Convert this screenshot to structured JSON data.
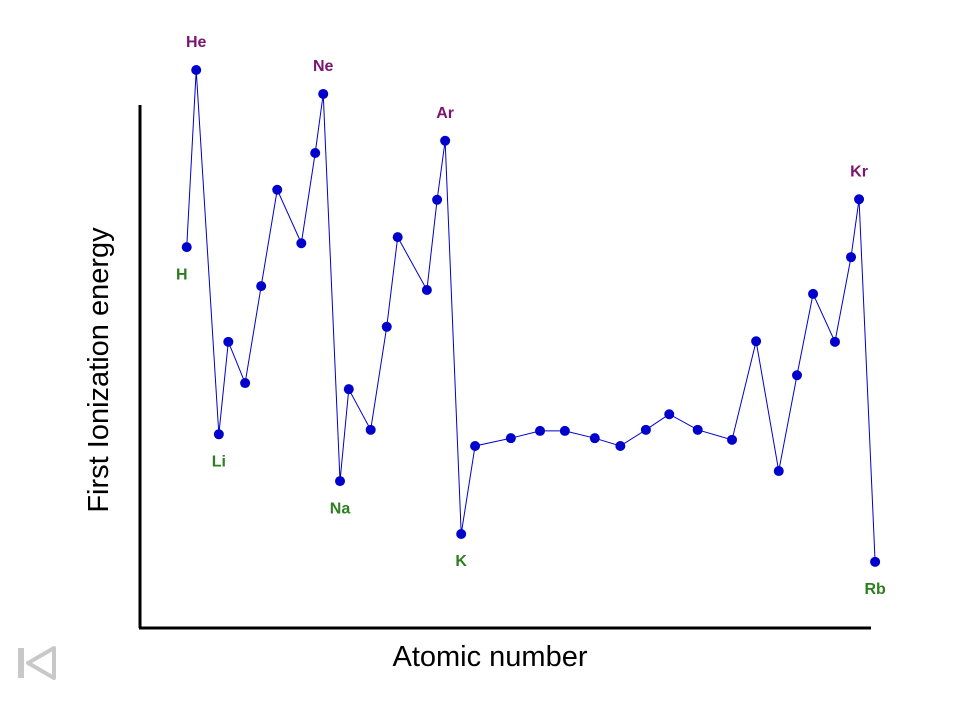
{
  "chart_data": {
    "type": "line",
    "x_label": "Atomic number",
    "y_label": "First Ionization energy",
    "x": [
      6.4,
      7.7,
      10.8,
      12.1,
      14.4,
      16.6,
      18.8,
      22.1,
      24.0,
      25.1,
      27.4,
      28.6,
      31.6,
      33.8,
      35.3,
      39.3,
      40.7,
      41.8,
      44.0,
      45.9,
      50.8,
      54.8,
      58.2,
      62.3,
      65.8,
      69.3,
      72.5,
      76.4,
      81.1,
      84.4,
      87.5,
      90.0,
      92.2,
      95.2,
      97.4,
      98.5,
      100.7
    ],
    "series": [
      {
        "color": "#0000cc",
        "values": [
          68.2,
          100,
          34.6,
          51.2,
          43.8,
          61.2,
          78.5,
          68.9,
          85.1,
          95.7,
          26.2,
          42.7,
          35.4,
          53.9,
          70.0,
          60.5,
          76.7,
          87.3,
          16.7,
          32.5,
          33.9,
          35.2,
          35.2,
          33.9,
          32.5,
          35.4,
          38.2,
          35.4,
          33.6,
          51.3,
          28.0,
          45.2,
          59.8,
          51.2,
          66.4,
          76.8,
          11.7
        ],
        "point_labels": [
          "H",
          "He",
          "Li",
          null,
          null,
          null,
          null,
          null,
          null,
          "Ne",
          "Na",
          null,
          null,
          null,
          null,
          null,
          null,
          "Ar",
          "K",
          null,
          null,
          null,
          null,
          null,
          null,
          null,
          null,
          null,
          null,
          null,
          null,
          null,
          null,
          null,
          null,
          "Kr",
          "Rb"
        ],
        "point_label_colors": [
          "#2e7d1e",
          "#7a1470",
          "#2e7d1e",
          null,
          null,
          null,
          null,
          null,
          null,
          "#7a1470",
          "#2e7d1e",
          null,
          null,
          null,
          null,
          null,
          null,
          "#7a1470",
          "#2e7d1e",
          null,
          null,
          null,
          null,
          null,
          null,
          null,
          null,
          null,
          null,
          null,
          null,
          null,
          null,
          null,
          null,
          "#7a1470",
          "#2e7d1e"
        ]
      }
    ],
    "xlim": [
      0,
      100
    ],
    "ylim": [
      0,
      100
    ]
  }
}
